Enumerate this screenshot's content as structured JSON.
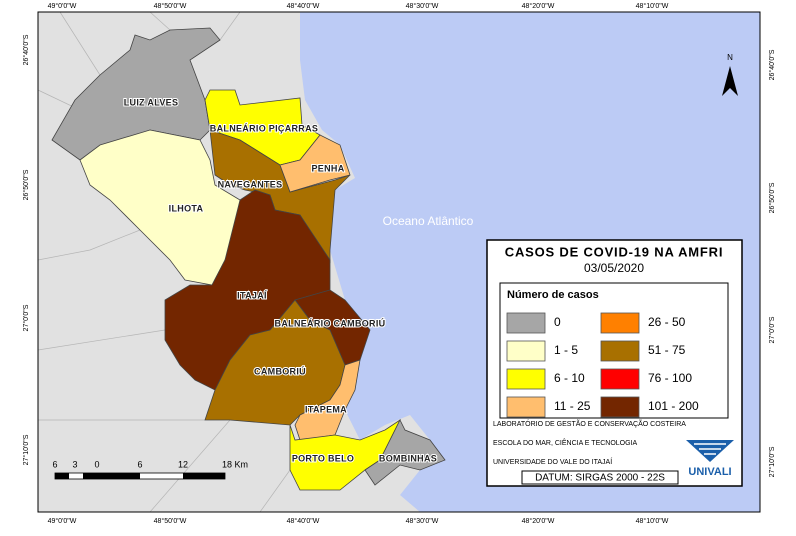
{
  "coordinates": {
    "top": [
      "49°0'0\"W",
      "48°50'0\"W",
      "48°40'0\"W",
      "48°30'0\"W",
      "48°20'0\"W",
      "48°10'0\"W"
    ],
    "bottom": [
      "49°0'0\"W",
      "48°50'0\"W",
      "48°40'0\"W",
      "48°30'0\"W",
      "48°20'0\"W",
      "48°10'0\"W"
    ],
    "left": [
      "26°40'0\"S",
      "26°50'0\"S",
      "27°0'0\"S",
      "27°10'0\"S"
    ],
    "right": [
      "26°40'0\"S",
      "26°50'0\"S",
      "27°0'0\"S",
      "27°10'0\"S"
    ]
  },
  "places": [
    "LUIZ ALVES",
    "BALNEÁRIO PIÇARRAS",
    "PENHA",
    "NAVEGANTES",
    "ILHOTA",
    "ITAJAÍ",
    "BALNEÁRIO CAMBORIÚ",
    "CAMBORIÚ",
    "ITAPEMA",
    "PORTO BELO",
    "BOMBINHAS"
  ],
  "ocean_label": "Oceano Atlântico",
  "north": "N",
  "legend": {
    "title": "CASOS DE COVID-19 NA AMFRI",
    "date": "03/05/2020",
    "heading": "Número de casos",
    "classes": [
      {
        "label": "0",
        "color": "#a6a6a6"
      },
      {
        "label": "1 - 5",
        "color": "#ffffc8"
      },
      {
        "label": "6 - 10",
        "color": "#ffff00"
      },
      {
        "label": "11 - 25",
        "color": "#ffbe6e"
      },
      {
        "label": "26 - 50",
        "color": "#ff8000"
      },
      {
        "label": "51 - 75",
        "color": "#a87000"
      },
      {
        "label": "76 - 100",
        "color": "#ff0000"
      },
      {
        "label": "101 - 200",
        "color": "#732600"
      }
    ]
  },
  "credits": [
    "LABORATÓRIO DE GESTÃO E CONSERVAÇÃO COSTEIRA",
    "ESCOLA DO MAR, CIÊNCIA E TECNOLOGIA",
    "UNIVERSIDADE DO VALE DO ITAJAÍ"
  ],
  "datum": "DATUM: SIRGAS 2000 - 22S",
  "logo": "UNIVALI",
  "scale": {
    "labels": [
      "6",
      "3",
      "0",
      "6",
      "12",
      "18 Km"
    ]
  }
}
